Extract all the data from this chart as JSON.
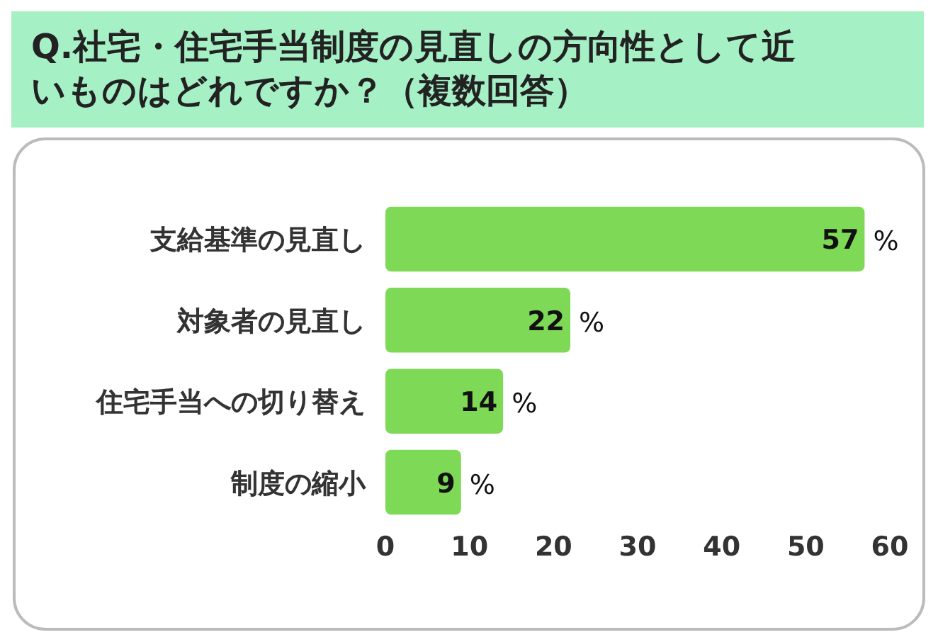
{
  "chart_data": {
    "type": "bar",
    "orientation": "horizontal",
    "title": "Q.社宅・住宅手当制度の見直しの方向性として近いものはどれですか？（複数回答）",
    "categories": [
      "支給基準の見直し",
      "対象者の見直し",
      "住宅手当への切り替え",
      "制度の縮小"
    ],
    "values": [
      57,
      22,
      14,
      9
    ],
    "color": "#7ed957",
    "value_labels": [
      "57 %",
      "22 %",
      "14 %",
      "9 %"
    ],
    "xlim": [
      0,
      60
    ],
    "xticks": [
      0,
      10,
      20,
      30,
      40,
      50,
      60
    ],
    "grid": false
  }
}
